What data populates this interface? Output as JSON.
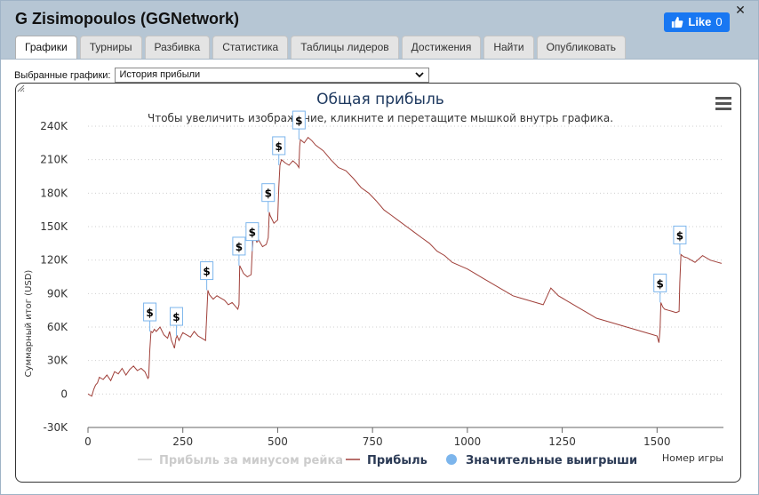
{
  "window": {
    "title": "G Zisimopoulos (GGNetwork)",
    "close_glyph": "✕"
  },
  "like": {
    "label": "Like",
    "count": "0",
    "color": "#1877f2"
  },
  "tabs": [
    {
      "label": "Графики",
      "active": true
    },
    {
      "label": "Турниры",
      "active": false
    },
    {
      "label": "Разбивка",
      "active": false
    },
    {
      "label": "Статистика",
      "active": false
    },
    {
      "label": "Таблицы лидеров",
      "active": false
    },
    {
      "label": "Достижения",
      "active": false
    },
    {
      "label": "Найти",
      "active": false
    },
    {
      "label": "Опубликовать",
      "active": false
    }
  ],
  "selector": {
    "label": "Выбранные графики:",
    "value": "История прибыли"
  },
  "chart_data": {
    "type": "line",
    "title": "Общая прибыль",
    "subtitle": "Чтобы увеличить изображение, кликните и перетащите мышкой внутрь графика.",
    "xlabel": "Номер игры",
    "ylabel": "Суммарный итог (USD)",
    "xlim": [
      0,
      1675
    ],
    "ylim": [
      -30000,
      240000
    ],
    "x_ticks": [
      0,
      250,
      500,
      750,
      1000,
      1250,
      1500
    ],
    "y_ticks": [
      -30000,
      0,
      30000,
      60000,
      90000,
      120000,
      150000,
      180000,
      210000,
      240000
    ],
    "y_tick_labels": [
      "-30K",
      "0",
      "30K",
      "60K",
      "90K",
      "120K",
      "150K",
      "180K",
      "210K",
      "240K"
    ],
    "x_tick_labels": [
      "0",
      "250",
      "500",
      "750",
      "1000",
      "1250",
      "1500"
    ],
    "grid": "horizontal dotted",
    "legend_placement": "bottom",
    "legend": [
      {
        "label": "Прибыль за минусом рейка",
        "style": "line",
        "color": "#cccccc",
        "dimmed": true
      },
      {
        "label": "Прибыль",
        "style": "line",
        "color": "#a0403a",
        "dimmed": false
      },
      {
        "label": "Значительные выигрыши",
        "style": "dot",
        "color": "#7cb5ec",
        "dimmed": false
      }
    ],
    "series": [
      {
        "name": "Прибыль",
        "color": "#a0403a",
        "x": [
          0,
          5,
          10,
          15,
          20,
          25,
          30,
          40,
          50,
          60,
          70,
          80,
          90,
          100,
          110,
          120,
          130,
          140,
          150,
          158,
          160,
          163,
          166,
          170,
          175,
          180,
          190,
          200,
          210,
          215,
          220,
          225,
          228,
          232,
          235,
          240,
          250,
          260,
          270,
          280,
          290,
          300,
          310,
          313,
          316,
          320,
          330,
          340,
          350,
          360,
          370,
          380,
          390,
          395,
          398,
          400,
          410,
          420,
          430,
          433,
          436,
          440,
          445,
          450,
          460,
          470,
          475,
          478,
          480,
          490,
          500,
          503,
          506,
          510,
          520,
          530,
          540,
          550,
          556,
          558,
          560,
          570,
          580,
          590,
          600,
          620,
          640,
          660,
          680,
          700,
          720,
          740,
          760,
          780,
          800,
          820,
          840,
          860,
          880,
          900,
          920,
          940,
          960,
          980,
          1000,
          1020,
          1040,
          1060,
          1080,
          1100,
          1120,
          1140,
          1160,
          1180,
          1200,
          1220,
          1240,
          1260,
          1280,
          1300,
          1320,
          1340,
          1360,
          1380,
          1400,
          1420,
          1440,
          1460,
          1480,
          1500,
          1505,
          1508,
          1510,
          1515,
          1520,
          1530,
          1540,
          1550,
          1558,
          1560,
          1563,
          1570,
          1580,
          1600,
          1620,
          1640,
          1660,
          1670
        ],
        "values": [
          0,
          -1000,
          -2000,
          4000,
          8000,
          10000,
          15000,
          13000,
          17000,
          12000,
          20000,
          18000,
          23000,
          17000,
          22000,
          25000,
          21000,
          23000,
          20000,
          14000,
          15000,
          40000,
          56000,
          55000,
          58000,
          56000,
          60000,
          53000,
          50000,
          56000,
          48000,
          44000,
          41000,
          50000,
          52000,
          48000,
          55000,
          53000,
          51000,
          56000,
          52000,
          50000,
          48000,
          70000,
          93000,
          89000,
          85000,
          88000,
          86000,
          84000,
          80000,
          82000,
          78000,
          76000,
          80000,
          115000,
          108000,
          105000,
          107000,
          128000,
          143000,
          140000,
          136000,
          138000,
          132000,
          134000,
          140000,
          163000,
          160000,
          153000,
          156000,
          185000,
          205000,
          210000,
          207000,
          205000,
          209000,
          206000,
          203000,
          222000,
          228000,
          225000,
          230000,
          227000,
          223000,
          218000,
          210000,
          203000,
          200000,
          193000,
          185000,
          180000,
          173000,
          165000,
          160000,
          155000,
          150000,
          145000,
          140000,
          135000,
          128000,
          124000,
          118000,
          115000,
          112000,
          108000,
          104000,
          100000,
          96000,
          92000,
          88000,
          86000,
          84000,
          82000,
          80000,
          95000,
          88000,
          84000,
          80000,
          76000,
          72000,
          68000,
          66000,
          64000,
          62000,
          60000,
          58000,
          56000,
          54000,
          52000,
          46000,
          58000,
          82000,
          78000,
          76000,
          75000,
          74000,
          73000,
          74000,
          100000,
          125000,
          123000,
          122000,
          118000,
          124000,
          120000,
          118000,
          117000
        ]
      }
    ],
    "big_wins": {
      "name": "Значительные выигрыши",
      "marker_label": "$",
      "x": [
        163,
        233,
        313,
        398,
        433,
        475,
        503,
        556,
        1508,
        1560
      ],
      "values": [
        56000,
        52000,
        93000,
        115000,
        128000,
        163000,
        205000,
        228000,
        82000,
        125000
      ]
    },
    "menu_icon": "hamburger-menu-icon"
  }
}
